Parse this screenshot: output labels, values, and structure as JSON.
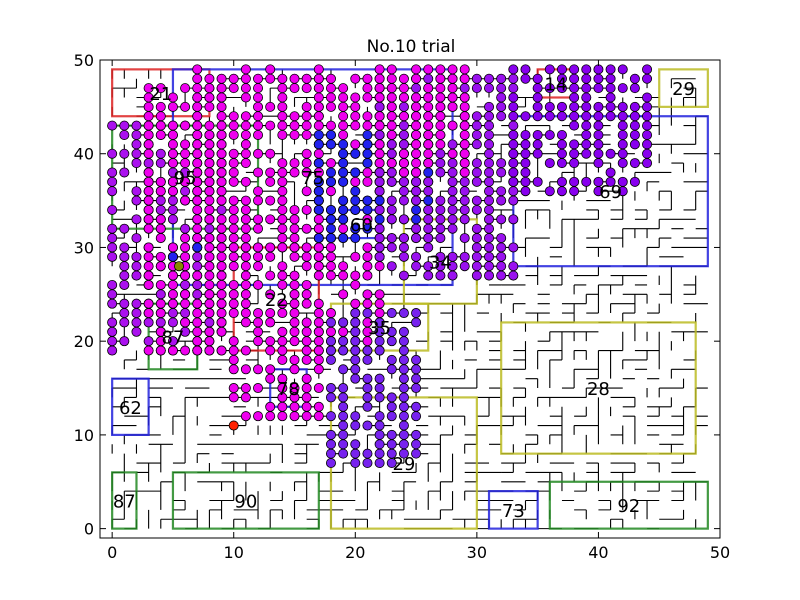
{
  "chart_data": {
    "type": "scatter",
    "title": "No.10 trial",
    "xlabel": "",
    "ylabel": "",
    "xlim": [
      -1,
      50
    ],
    "ylim": [
      -1,
      50
    ],
    "grid": false,
    "legend": "none",
    "xticks": [
      "0",
      "10",
      "20",
      "30",
      "40",
      "50"
    ],
    "yticks": [
      "0",
      "10",
      "20",
      "30",
      "40",
      "50"
    ],
    "regions": [
      {
        "label": "21",
        "x0": 0,
        "y0": 44,
        "x1": 8,
        "y1": 49,
        "color": "#dd2222"
      },
      {
        "label": "75",
        "x0": 5,
        "y0": 26,
        "x1": 28,
        "y1": 49,
        "color": "#2222dd"
      },
      {
        "label": "14",
        "x0": 35,
        "y0": 46,
        "x1": 38,
        "y1": 49,
        "color": "#dd2222"
      },
      {
        "label": "29",
        "x0": 45,
        "y0": 45,
        "x1": 49,
        "y1": 49,
        "color": "#bbbb22"
      },
      {
        "label": "95",
        "x0": 0,
        "y0": 32,
        "x1": 12,
        "y1": 43,
        "color": "#228822"
      },
      {
        "label": "69",
        "x0": 33,
        "y0": 28,
        "x1": 49,
        "y1": 44,
        "color": "#2222dd"
      },
      {
        "label": "60",
        "x0": 19,
        "y0": 31,
        "x1": 22,
        "y1": 34,
        "color": "#2222dd"
      },
      {
        "label": "34",
        "x0": 24,
        "y0": 24,
        "x1": 30,
        "y1": 33,
        "color": "#bbbb22"
      },
      {
        "label": "22",
        "x0": 10,
        "y0": 19,
        "x1": 17,
        "y1": 30,
        "color": "#dd2222"
      },
      {
        "label": "87",
        "x0": 3,
        "y0": 17,
        "x1": 7,
        "y1": 24,
        "color": "#228822"
      },
      {
        "label": "35",
        "x0": 18,
        "y0": 19,
        "x1": 26,
        "y1": 24,
        "color": "#bbbb22"
      },
      {
        "label": "28",
        "x0": 32,
        "y0": 8,
        "x1": 48,
        "y1": 22,
        "color": "#bbbb22"
      },
      {
        "label": "62",
        "x0": 0,
        "y0": 10,
        "x1": 3,
        "y1": 16,
        "color": "#2222dd"
      },
      {
        "label": "78",
        "x0": 13,
        "y0": 13,
        "x1": 16,
        "y1": 17,
        "color": "#2222dd"
      },
      {
        "label": "29",
        "x0": 18,
        "y0": 0,
        "x1": 30,
        "y1": 14,
        "color": "#bbbb22"
      },
      {
        "label": "87",
        "x0": 0,
        "y0": 0,
        "x1": 2,
        "y1": 6,
        "color": "#228822"
      },
      {
        "label": "90",
        "x0": 5,
        "y0": 0,
        "x1": 17,
        "y1": 6,
        "color": "#228822"
      },
      {
        "label": "73",
        "x0": 31,
        "y0": 0,
        "x1": 35,
        "y1": 4,
        "color": "#2222dd"
      },
      {
        "label": "92",
        "x0": 36,
        "y0": 0,
        "x1": 49,
        "y1": 5,
        "color": "#228822"
      }
    ],
    "point_colors": {
      "magenta": "#ee00ee",
      "violet": "#8800ee",
      "purple": "#aa11ee",
      "blue": "#2222ee"
    },
    "special_points": [
      {
        "x": 10,
        "y": 11,
        "color": "#ff2200"
      },
      {
        "x": 5.5,
        "y": 28,
        "color": "#888800"
      }
    ],
    "point_clusters": [
      {
        "x": [
          0,
          9
        ],
        "y": [
          19,
          43
        ],
        "color": "#aa11ee"
      },
      {
        "x": [
          3,
          9
        ],
        "y": [
          19,
          47
        ],
        "color": "#ee00ee"
      },
      {
        "x": [
          7,
          17
        ],
        "y": [
          30,
          49
        ],
        "color": "#ee00ee"
      },
      {
        "x": [
          10,
          17
        ],
        "y": [
          12,
          30
        ],
        "color": "#ee00ee"
      },
      {
        "x": [
          17,
          22
        ],
        "y": [
          19,
          48
        ],
        "color": "#ee00ee"
      },
      {
        "x": [
          17,
          26
        ],
        "y": [
          31,
          42
        ],
        "color": "#2222ee"
      },
      {
        "x": [
          18,
          25
        ],
        "y": [
          7,
          23
        ],
        "color": "#7722ee"
      },
      {
        "x": [
          22,
          33
        ],
        "y": [
          27,
          48
        ],
        "color": "#9911ee"
      },
      {
        "x": [
          22,
          29
        ],
        "y": [
          38,
          49
        ],
        "color": "#ee00ee"
      },
      {
        "x": [
          33,
          44
        ],
        "y": [
          36,
          49
        ],
        "color": "#8800ee"
      },
      {
        "x": [
          5,
          7
        ],
        "y": [
          29,
          31
        ],
        "color": "#2222ee"
      }
    ]
  }
}
